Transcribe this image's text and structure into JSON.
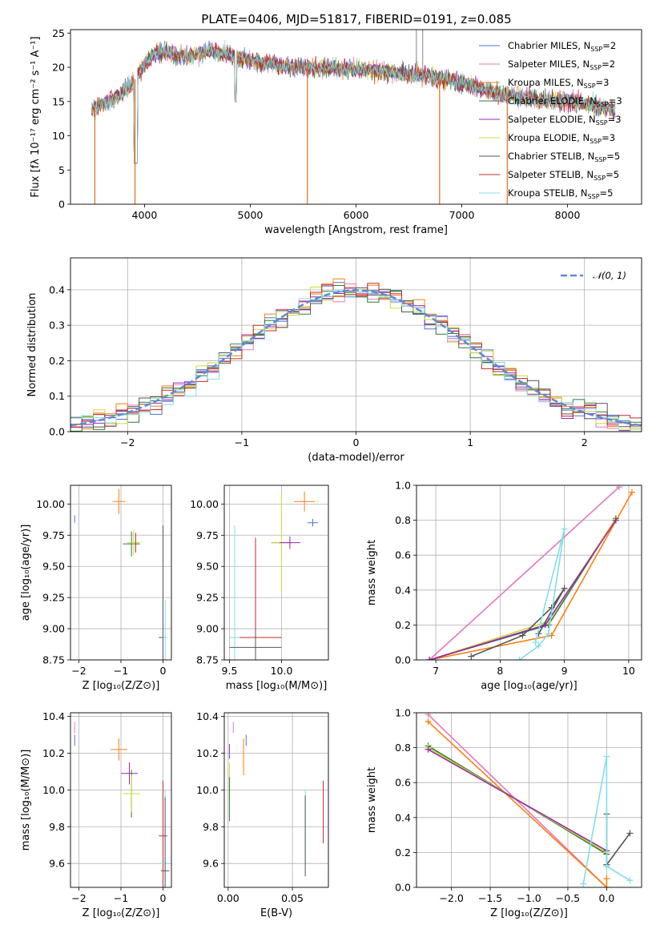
{
  "title": "PLATE=0406, MJD=51817, FIBERID=0191, z=0.085",
  "models": [
    {
      "label": "Chabrier MILES, N",
      "sub": "SSP",
      "tail": "=2",
      "color": "#4c72d9"
    },
    {
      "label": "Salpeter MILES, N",
      "sub": "SSP",
      "tail": "=2",
      "color": "#e377c2"
    },
    {
      "label": "Kroupa MILES, N",
      "sub": "SSP",
      "tail": "=3",
      "color": "#ff7f0e"
    },
    {
      "label": "Chabrier ELODIE, N",
      "sub": "SSP",
      "tail": "=3",
      "color": "#2e7d32"
    },
    {
      "label": "Salpeter ELODIE, N",
      "sub": "SSP",
      "tail": "=3",
      "color": "#9c27b0"
    },
    {
      "label": "Kroupa ELODIE, N",
      "sub": "SSP",
      "tail": "=3",
      "color": "#cddc39"
    },
    {
      "label": "Chabrier STELIB, N",
      "sub": "SSP",
      "tail": "=5",
      "color": "#555555"
    },
    {
      "label": "Salpeter STELIB, N",
      "sub": "SSP",
      "tail": "=5",
      "color": "#c62828"
    },
    {
      "label": "Kroupa STELIB, N",
      "sub": "SSP",
      "tail": "=5",
      "color": "#80deea"
    }
  ],
  "chart_data": [
    {
      "id": "spectrum",
      "type": "line",
      "xlabel": "wavelength [Angstrom, rest frame]",
      "ylabel": "Flux [fλ 10⁻¹⁷ erg cm⁻² s⁻¹ A⁻¹]",
      "xlim": [
        3300,
        8700
      ],
      "ylim": [
        0,
        25.5
      ],
      "xticks": [
        4000,
        5000,
        6000,
        7000,
        8000
      ],
      "yticks": [
        0,
        5,
        10,
        15,
        20,
        25
      ],
      "legend": "upper-right",
      "continuum": [
        [
          3500,
          14
        ],
        [
          3700,
          15.2
        ],
        [
          3900,
          18
        ],
        [
          4000,
          20.5
        ],
        [
          4100,
          22
        ],
        [
          4200,
          22.3
        ],
        [
          4400,
          21.5
        ],
        [
          4600,
          22.4
        ],
        [
          4800,
          22
        ],
        [
          4900,
          21.3
        ],
        [
          5100,
          20.8
        ],
        [
          5300,
          20.2
        ],
        [
          5600,
          20
        ],
        [
          5900,
          19.8
        ],
        [
          6200,
          19.5
        ],
        [
          6500,
          19
        ],
        [
          6800,
          18.5
        ],
        [
          7100,
          17.2
        ],
        [
          7400,
          16
        ],
        [
          7700,
          15.3
        ],
        [
          8000,
          15
        ],
        [
          8200,
          14.6
        ],
        [
          8450,
          13.8
        ]
      ],
      "spikes": [
        [
          3530,
          0
        ],
        [
          3910,
          0
        ],
        [
          5540,
          0
        ],
        [
          6790,
          0
        ],
        [
          7430,
          0
        ],
        [
          6570,
          27
        ],
        [
          6630,
          26
        ]
      ]
    },
    {
      "id": "residuals",
      "type": "histogram",
      "xlabel": "(data-model)/error",
      "ylabel": "Normed distribution",
      "xlim": [
        -2.5,
        2.5
      ],
      "ylim": [
        0,
        0.49
      ],
      "xticks": [
        -2,
        -1,
        0,
        1,
        2
      ],
      "yticks": [
        0.0,
        0.1,
        0.2,
        0.3,
        0.4
      ],
      "legend": "upper-right",
      "legend_label": "𝒩(0, 1)",
      "gaussian": {
        "mean": 0,
        "sigma": 1,
        "color": "#5b8bd9"
      },
      "bin_width": 0.1
    },
    {
      "id": "age-vs-Z",
      "type": "scatter",
      "xlabel": "Z [log₁₀(Z/Z⊙)]",
      "ylabel": "age  [log₁₀(age/yr)]",
      "xlim": [
        -2.2,
        0.2
      ],
      "ylim": [
        8.75,
        10.15
      ],
      "xticks": [
        -2,
        -1,
        0
      ],
      "yticks": [
        8.75,
        9.0,
        9.25,
        9.5,
        9.75,
        10.0
      ],
      "points": [
        {
          "x": -2.1,
          "y": 9.88,
          "xerr": 0,
          "yerr": 0.03,
          "color": "#4c72d9"
        },
        {
          "x": -1.05,
          "y": 10.02,
          "xerr": 0.15,
          "yerr": 0.1,
          "color": "#ff7f0e"
        },
        {
          "x": -0.75,
          "y": 9.68,
          "xerr": 0.2,
          "yerr": 0.1,
          "color": "#2e7d32"
        },
        {
          "x": -0.7,
          "y": 9.69,
          "xerr": 0.15,
          "yerr": 0.1,
          "color": "#cddc39"
        },
        {
          "x": -0.65,
          "y": 9.69,
          "xerr": 0,
          "yerr": 0.08,
          "color": "#c62828"
        },
        {
          "x": 0.0,
          "y": 8.93,
          "xerr": 0.1,
          "yerr": 0.9,
          "color": "#555555"
        },
        {
          "x": 0.05,
          "y": 8.93,
          "xerr": 0.05,
          "yerr": 0.3,
          "color": "#80deea"
        }
      ]
    },
    {
      "id": "age-vs-mass",
      "type": "scatter",
      "xlabel": "mass [log₁₀(M/M⊙)]",
      "ylabel": "",
      "xlim": [
        9.45,
        10.45
      ],
      "ylim": [
        8.75,
        10.15
      ],
      "xticks": [
        9.5,
        10.0
      ],
      "yticks": [
        8.75,
        9.0,
        9.25,
        9.5,
        9.75,
        10.0
      ],
      "points": [
        {
          "x": 10.22,
          "y": 10.02,
          "xerr": 0.1,
          "yerr": 0.08,
          "color": "#ff7f0e"
        },
        {
          "x": 10.3,
          "y": 9.85,
          "xerr": 0.05,
          "yerr": 0.03,
          "color": "#4c72d9"
        },
        {
          "x": 10.0,
          "y": 9.69,
          "xerr": 0.1,
          "yerr": 0.4,
          "color": "#2e7d32"
        },
        {
          "x": 10.0,
          "y": 9.69,
          "xerr": 0.1,
          "yerr": 0.4,
          "color": "#cddc39"
        },
        {
          "x": 10.08,
          "y": 9.69,
          "xerr": 0.1,
          "yerr": 0.05,
          "color": "#9c27b0"
        },
        {
          "x": 9.75,
          "y": 8.93,
          "xerr": 0.25,
          "yerr": 0.8,
          "color": "#c62828"
        },
        {
          "x": 9.55,
          "y": 8.93,
          "xerr": 0.05,
          "yerr": 0.9,
          "color": "#80deea"
        },
        {
          "x": 9.75,
          "y": 8.85,
          "xerr": 0.25,
          "yerr": 0.1,
          "color": "#555555"
        }
      ]
    },
    {
      "id": "weight-vs-age",
      "type": "line",
      "xlabel": "age  [log₁₀(age/yr)]",
      "ylabel": "mass weight",
      "xlim": [
        6.7,
        10.2
      ],
      "ylim": [
        0,
        1.0
      ],
      "xticks": [
        7,
        8,
        9,
        10
      ],
      "yticks": [
        0.0,
        0.2,
        0.4,
        0.6,
        0.8,
        1.0
      ],
      "series": [
        {
          "color": "#e377c2",
          "x": [
            6.9,
            9.85
          ],
          "y": [
            0.0,
            0.99
          ]
        },
        {
          "color": "#ff7f0e",
          "x": [
            6.9,
            8.8,
            10.05
          ],
          "y": [
            0.0,
            0.14,
            0.96
          ]
        },
        {
          "color": "#2e7d32",
          "x": [
            6.9,
            8.75,
            9.8
          ],
          "y": [
            0.0,
            0.2,
            0.81
          ]
        },
        {
          "color": "#cddc39",
          "x": [
            6.9,
            8.75,
            9.78
          ],
          "y": [
            0.0,
            0.22,
            0.8
          ]
        },
        {
          "color": "#9c27b0",
          "x": [
            6.9,
            8.7,
            9.8
          ],
          "y": [
            0.0,
            0.2,
            0.8
          ]
        },
        {
          "color": "#555555",
          "x": [
            7.55,
            8.35,
            8.8,
            9.0,
            8.6
          ],
          "y": [
            0.02,
            0.14,
            0.3,
            0.41,
            0.15
          ]
        },
        {
          "color": "#80deea",
          "x": [
            8.3,
            8.6,
            8.75,
            9.0,
            8.55
          ],
          "y": [
            0.0,
            0.08,
            0.15,
            0.75,
            0.1
          ]
        }
      ]
    },
    {
      "id": "mass-vs-Z",
      "type": "scatter",
      "xlabel": "Z [log₁₀(Z/Z⊙)]",
      "ylabel": "mass [log₁₀(M/M⊙)]",
      "xlim": [
        -2.2,
        0.2
      ],
      "ylim": [
        9.47,
        10.42
      ],
      "xticks": [
        -2,
        -1,
        0
      ],
      "yticks": [
        9.6,
        9.8,
        10.0,
        10.2,
        10.4
      ],
      "points": [
        {
          "x": -2.1,
          "y": 10.34,
          "xerr": 0,
          "yerr": 0.03,
          "color": "#e377c2"
        },
        {
          "x": -2.1,
          "y": 10.27,
          "xerr": 0,
          "yerr": 0.03,
          "color": "#4c72d9"
        },
        {
          "x": -1.05,
          "y": 10.22,
          "xerr": 0.2,
          "yerr": 0.06,
          "color": "#ff7f0e"
        },
        {
          "x": -0.8,
          "y": 10.09,
          "xerr": 0.2,
          "yerr": 0.06,
          "color": "#9c27b0"
        },
        {
          "x": -0.75,
          "y": 9.98,
          "xerr": 0.2,
          "yerr": 0.13,
          "color": "#2e7d32"
        },
        {
          "x": -0.75,
          "y": 9.98,
          "xerr": 0.2,
          "yerr": 0.1,
          "color": "#cddc39"
        },
        {
          "x": 0.0,
          "y": 9.75,
          "xerr": 0.1,
          "yerr": 0.3,
          "color": "#c62828"
        },
        {
          "x": 0.05,
          "y": 9.6,
          "xerr": 0.1,
          "yerr": 0.4,
          "color": "#80deea"
        },
        {
          "x": 0.05,
          "y": 9.56,
          "xerr": 0.1,
          "yerr": 0.4,
          "color": "#555555"
        }
      ]
    },
    {
      "id": "mass-vs-ebv",
      "type": "scatter",
      "xlabel": "E(B-V)",
      "ylabel": "",
      "xlim": [
        -0.003,
        0.078
      ],
      "ylim": [
        9.47,
        10.42
      ],
      "xticks": [
        0.0,
        0.05
      ],
      "yticks": [
        9.6,
        9.8,
        10.0,
        10.2,
        10.4
      ],
      "points": [
        {
          "x": 0.004,
          "y": 10.34,
          "xerr": 0,
          "yerr": 0.03,
          "color": "#e377c2"
        },
        {
          "x": 0.014,
          "y": 10.27,
          "xerr": 0,
          "yerr": 0.03,
          "color": "#4c72d9"
        },
        {
          "x": 0.012,
          "y": 10.18,
          "xerr": 0,
          "yerr": 0.1,
          "color": "#ff7f0e"
        },
        {
          "x": 0.001,
          "y": 10.21,
          "xerr": 0,
          "yerr": 0.04,
          "color": "#9c27b0"
        },
        {
          "x": 0.001,
          "y": 10.05,
          "xerr": 0,
          "yerr": 0.1,
          "color": "#cddc39"
        },
        {
          "x": 0.001,
          "y": 9.95,
          "xerr": 0,
          "yerr": 0.12,
          "color": "#2e7d32"
        },
        {
          "x": 0.074,
          "y": 9.88,
          "xerr": 0,
          "yerr": 0.17,
          "color": "#c62828"
        },
        {
          "x": 0.06,
          "y": 9.8,
          "xerr": 0,
          "yerr": 0.2,
          "color": "#80deea"
        },
        {
          "x": 0.06,
          "y": 9.75,
          "xerr": 0,
          "yerr": 0.22,
          "color": "#555555"
        }
      ]
    },
    {
      "id": "weight-vs-Z",
      "type": "line",
      "xlabel": "Z [log₁₀(Z/Z⊙)]",
      "ylabel": "mass weight",
      "xlim": [
        -2.45,
        0.45
      ],
      "ylim": [
        0,
        1.0
      ],
      "xticks": [
        -2.0,
        -1.5,
        -1.0,
        -0.5,
        0.0
      ],
      "yticks": [
        0.0,
        0.2,
        0.4,
        0.6,
        0.8,
        1.0
      ],
      "series": [
        {
          "color": "#e377c2",
          "x": [
            -2.3,
            0.0
          ],
          "y": [
            0.99,
            0.0
          ]
        },
        {
          "color": "#ff7f0e",
          "x": [
            -2.3,
            0.0,
            0.0
          ],
          "y": [
            0.95,
            0.0,
            0.05
          ]
        },
        {
          "color": "#2e7d32",
          "x": [
            -2.3,
            0.0
          ],
          "y": [
            0.81,
            0.19
          ]
        },
        {
          "color": "#cddc39",
          "x": [
            -2.3,
            0.0
          ],
          "y": [
            0.8,
            0.2
          ]
        },
        {
          "color": "#9c27b0",
          "x": [
            -2.3,
            0.0
          ],
          "y": [
            0.79,
            0.21
          ]
        },
        {
          "color": "#555555",
          "x": [
            0.0,
            0.0,
            0.3
          ],
          "y": [
            0.42,
            0.13,
            0.31
          ]
        },
        {
          "color": "#80deea",
          "x": [
            -0.3,
            0.0,
            0.0,
            0.3
          ],
          "y": [
            0.02,
            0.75,
            0.12,
            0.04
          ]
        }
      ]
    }
  ]
}
